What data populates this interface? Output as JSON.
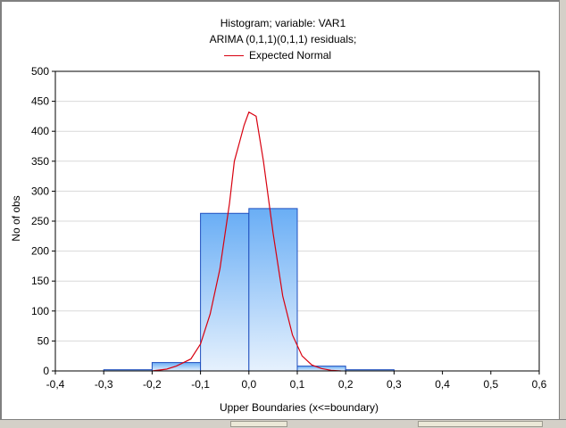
{
  "chart_data": {
    "type": "bar",
    "title": "Histogram; variable: VAR1",
    "subtitle": "ARIMA (0,1,1)(0,1,1) residuals;",
    "xlabel": "Upper Boundaries (x<=boundary)",
    "ylabel": "No of obs",
    "xlim": [
      -0.4,
      0.6
    ],
    "ylim": [
      0,
      500
    ],
    "x_ticks": [
      "-0,4",
      "-0,3",
      "-0,2",
      "-0,1",
      "0,0",
      "0,1",
      "0,2",
      "0,3",
      "0,4",
      "0,5",
      "0,6"
    ],
    "y_ticks": [
      "0",
      "50",
      "100",
      "150",
      "200",
      "250",
      "300",
      "350",
      "400",
      "450",
      "500"
    ],
    "grid": true,
    "legend": {
      "position": "top-center",
      "entries": [
        "Expected Normal"
      ]
    },
    "bins": [
      {
        "from": -0.3,
        "to": -0.2,
        "value": 2
      },
      {
        "from": -0.2,
        "to": -0.1,
        "value": 14
      },
      {
        "from": -0.1,
        "to": 0.0,
        "value": 263
      },
      {
        "from": 0.0,
        "to": 0.1,
        "value": 271
      },
      {
        "from": 0.1,
        "to": 0.2,
        "value": 8
      },
      {
        "from": 0.2,
        "to": 0.3,
        "value": 2
      }
    ],
    "series": [
      {
        "name": "Expected Normal",
        "type": "line",
        "color": "#d8000f",
        "x": [
          -0.2,
          -0.17,
          -0.15,
          -0.12,
          -0.1,
          -0.08,
          -0.06,
          -0.04,
          -0.03,
          -0.02,
          -0.01,
          0.0,
          0.015,
          0.03,
          0.05,
          0.07,
          0.09,
          0.11,
          0.13,
          0.15,
          0.17,
          0.19
        ],
        "y": [
          0,
          3,
          8,
          20,
          45,
          95,
          170,
          280,
          350,
          380,
          410,
          432,
          425,
          350,
          230,
          125,
          60,
          25,
          10,
          4,
          1,
          0
        ]
      }
    ],
    "bar_fill_top": "#6aaef5",
    "bar_fill_bottom": "#e6f1fd",
    "bar_stroke": "#1f4fbf"
  }
}
